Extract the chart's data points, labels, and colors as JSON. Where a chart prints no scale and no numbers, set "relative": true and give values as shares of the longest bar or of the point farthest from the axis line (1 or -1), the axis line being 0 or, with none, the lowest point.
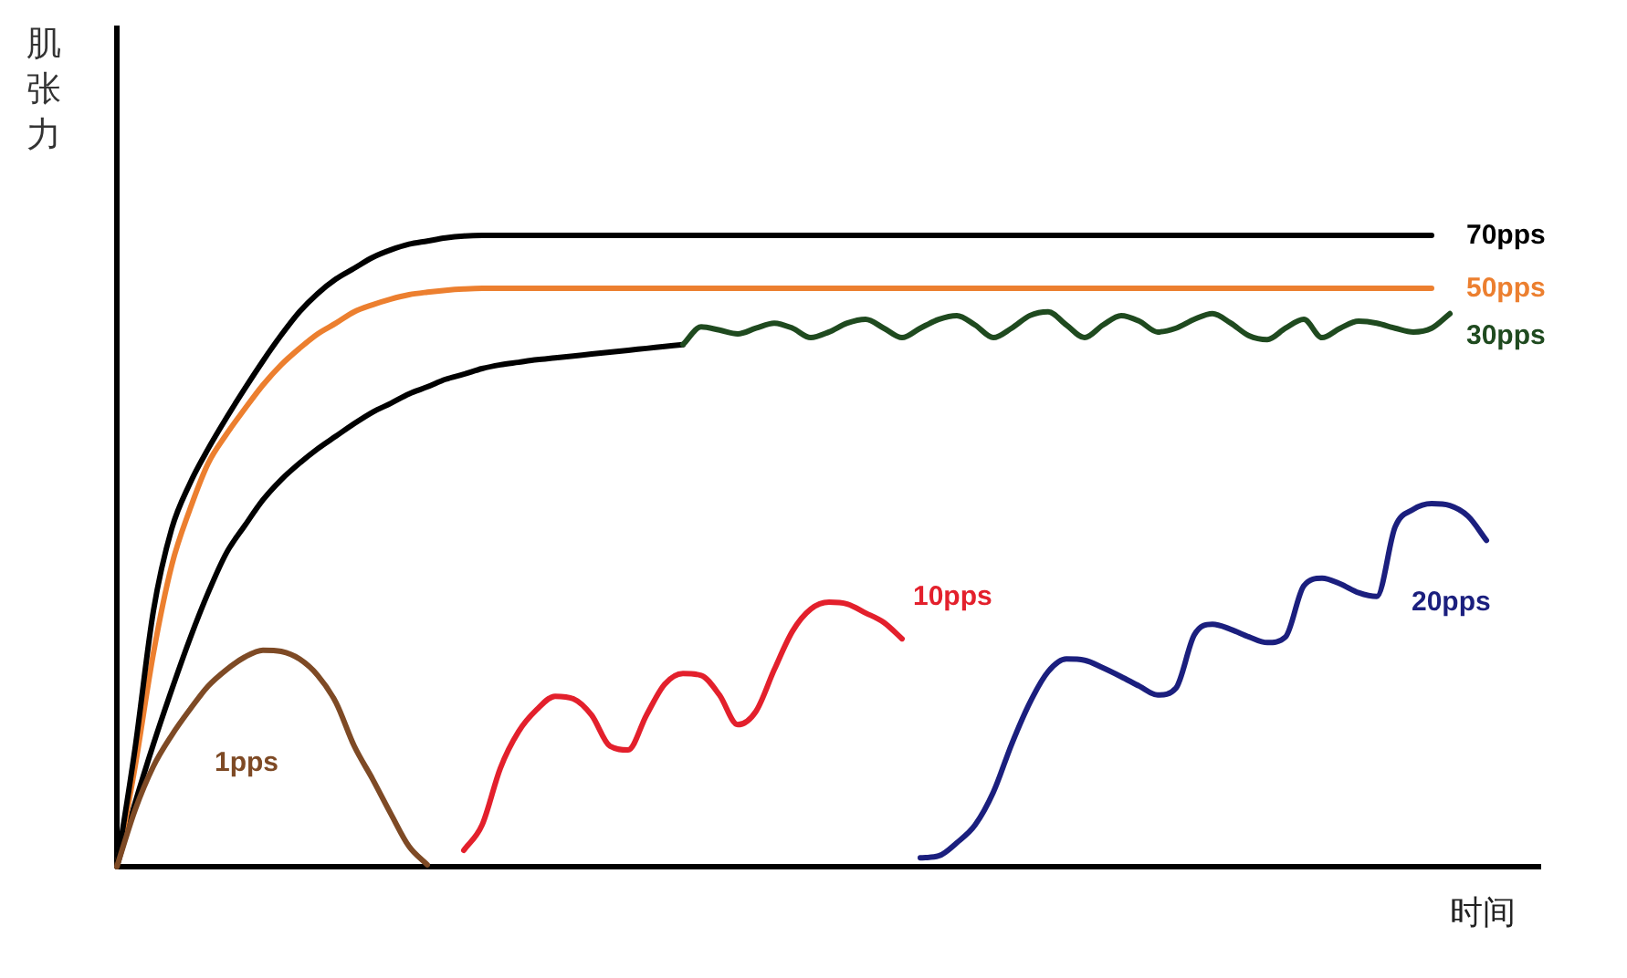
{
  "chart_data": {
    "type": "line",
    "relative": true,
    "ylabel": "肌张力",
    "xlabel": "时间",
    "line_style": "solid",
    "categories": [
      null,
      null,
      null,
      null,
      null,
      null,
      null,
      null,
      null,
      null,
      null,
      null,
      null,
      null,
      null,
      null,
      null,
      null,
      null,
      null,
      null,
      null,
      null,
      null,
      null,
      null,
      null,
      null,
      null,
      null,
      null,
      null,
      null,
      null,
      null,
      null,
      null,
      null,
      null,
      null,
      null,
      null,
      null,
      null,
      null,
      null,
      null,
      null,
      null,
      null,
      null,
      null,
      null,
      null,
      null,
      null,
      null,
      null,
      null,
      null,
      null,
      null,
      null,
      null,
      null,
      null,
      null,
      null,
      null,
      null,
      null,
      null,
      null,
      null,
      null,
      null,
      null,
      null,
      null
    ],
    "series": [
      {
        "color": "#000000",
        "values": [
          0,
          0.101,
          0.194,
          0.28,
          0.361,
          0.434,
          0.497,
          0.54,
          0.581,
          0.613,
          0.639,
          0.662,
          0.682,
          0.702,
          0.72,
          0.734,
          0.749,
          0.76,
          0.772,
          0.78,
          0.789,
          0.795,
          0.799,
          0.803,
          0.806,
          0.809,
          0.812,
          0.815,
          0.818,
          0.821,
          0.824,
          0.827,
          null,
          null,
          null,
          null,
          null,
          null,
          null,
          null,
          null,
          null,
          null,
          null,
          null,
          null,
          null,
          null,
          null,
          null,
          null,
          null,
          null,
          null,
          null,
          null,
          null,
          null,
          null,
          null,
          null,
          null,
          null,
          null,
          null,
          null,
          null,
          null,
          null,
          null,
          null,
          null,
          null,
          null,
          null,
          null,
          null,
          null,
          null
        ]
      },
      {
        "name": "30pps",
        "color": "#1f4a1f",
        "values": [
          null,
          null,
          null,
          null,
          null,
          null,
          null,
          null,
          null,
          null,
          null,
          null,
          null,
          null,
          null,
          null,
          null,
          null,
          null,
          null,
          null,
          null,
          null,
          null,
          null,
          null,
          null,
          null,
          null,
          null,
          null,
          0.827,
          0.855,
          0.85,
          0.844,
          0.853,
          0.861,
          0.853,
          0.838,
          0.847,
          0.861,
          0.867,
          0.853,
          0.838,
          0.853,
          0.867,
          0.873,
          0.858,
          0.838,
          0.853,
          0.873,
          0.879,
          0.858,
          0.838,
          0.858,
          0.873,
          0.864,
          0.847,
          0.853,
          0.867,
          0.876,
          0.861,
          0.841,
          0.835,
          0.853,
          0.867,
          0.838,
          0.853,
          0.864,
          0.861,
          0.853,
          0.847,
          0.853,
          0.876,
          null,
          null,
          null,
          null,
          null
        ]
      },
      {
        "name": "50pps",
        "color": "#ec7f2f",
        "values": [
          0,
          0.159,
          0.338,
          0.477,
          0.566,
          0.639,
          0.685,
          0.725,
          0.763,
          0.795,
          0.821,
          0.844,
          0.861,
          0.879,
          0.89,
          0.899,
          0.906,
          0.91,
          0.913,
          0.915,
          0.916,
          0.916,
          0.916,
          0.916,
          0.916,
          0.916,
          0.916,
          0.916,
          0.916,
          0.916,
          0.916,
          0.916,
          0.916,
          0.916,
          0.916,
          0.916,
          0.916,
          0.916,
          0.916,
          0.916,
          0.916,
          0.916,
          0.916,
          0.916,
          0.916,
          0.916,
          0.916,
          0.916,
          0.916,
          0.916,
          0.916,
          0.916,
          0.916,
          0.916,
          0.916,
          0.916,
          0.916,
          0.916,
          0.916,
          0.916,
          0.916,
          0.916,
          0.916,
          0.916,
          0.916,
          0.916,
          0.916,
          0.916,
          0.916,
          0.916,
          0.916,
          0.916,
          0.916,
          null,
          null,
          null,
          null,
          null,
          null
        ]
      },
      {
        "name": "70pps",
        "color": "#000000",
        "values": [
          0,
          0.188,
          0.405,
          0.535,
          0.607,
          0.662,
          0.711,
          0.757,
          0.801,
          0.842,
          0.879,
          0.908,
          0.931,
          0.948,
          0.965,
          0.977,
          0.986,
          0.991,
          0.996,
          0.999,
          1,
          1,
          1,
          1,
          1,
          1,
          1,
          1,
          1,
          1,
          1,
          1,
          1,
          1,
          1,
          1,
          1,
          1,
          1,
          1,
          1,
          1,
          1,
          1,
          1,
          1,
          1,
          1,
          1,
          1,
          1,
          1,
          1,
          1,
          1,
          1,
          1,
          1,
          1,
          1,
          1,
          1,
          1,
          1,
          1,
          1,
          1,
          1,
          1,
          1,
          1,
          1,
          1,
          null,
          null,
          null,
          null,
          null,
          null
        ]
      },
      {
        "name": "1pps",
        "color": "#7e4a25",
        "values": [
          0,
          0.09,
          0.159,
          0.208,
          0.249,
          0.286,
          0.312,
          0.332,
          0.343,
          0.341,
          0.329,
          0.303,
          0.26,
          0.191,
          0.139,
          0.084,
          0.032,
          0.003,
          null,
          null,
          null,
          null,
          null,
          null,
          null,
          null,
          null,
          null,
          null,
          null,
          null,
          null,
          null,
          null,
          null,
          null,
          null,
          null,
          null,
          null,
          null,
          null,
          null,
          null,
          null,
          null,
          null,
          null,
          null,
          null,
          null,
          null,
          null,
          null,
          null,
          null,
          null,
          null,
          null,
          null,
          null,
          null,
          null,
          null,
          null,
          null,
          null,
          null,
          null,
          null,
          null,
          null,
          null,
          null,
          null,
          null,
          null,
          null,
          null
        ]
      },
      {
        "name": "10pps",
        "color": "#e3202c",
        "values": [
          null,
          null,
          null,
          null,
          null,
          null,
          null,
          null,
          null,
          null,
          null,
          null,
          null,
          null,
          null,
          null,
          null,
          null,
          null,
          0.026,
          0.066,
          0.156,
          0.214,
          0.249,
          0.27,
          0.266,
          0.24,
          0.191,
          0.185,
          0.24,
          0.289,
          0.306,
          0.303,
          0.272,
          0.225,
          0.246,
          0.312,
          0.373,
          0.408,
          0.419,
          0.416,
          0.402,
          0.387,
          0.361,
          null,
          null,
          null,
          null,
          null,
          null,
          null,
          null,
          null,
          null,
          null,
          null,
          null,
          null,
          null,
          null,
          null,
          null,
          null,
          null,
          null,
          null,
          null,
          null,
          null,
          null,
          null,
          null,
          null,
          null,
          null,
          null,
          null,
          null,
          null
        ]
      },
      {
        "name": "20pps",
        "color": "#1b1f7e",
        "values": [
          null,
          null,
          null,
          null,
          null,
          null,
          null,
          null,
          null,
          null,
          null,
          null,
          null,
          null,
          null,
          null,
          null,
          null,
          null,
          null,
          null,
          null,
          null,
          null,
          null,
          null,
          null,
          null,
          null,
          null,
          null,
          null,
          null,
          null,
          null,
          null,
          null,
          null,
          null,
          null,
          null,
          null,
          null,
          null,
          0.014,
          0.017,
          0.038,
          0.066,
          0.118,
          0.194,
          0.26,
          0.309,
          0.329,
          0.327,
          0.315,
          0.301,
          0.286,
          0.272,
          0.283,
          0.367,
          0.384,
          0.376,
          0.364,
          0.355,
          0.364,
          0.445,
          0.457,
          0.448,
          0.434,
          0.428,
          0.538,
          0.566,
          0.575,
          0.572,
          0.555,
          0.517,
          null,
          null,
          null
        ]
      }
    ]
  }
}
